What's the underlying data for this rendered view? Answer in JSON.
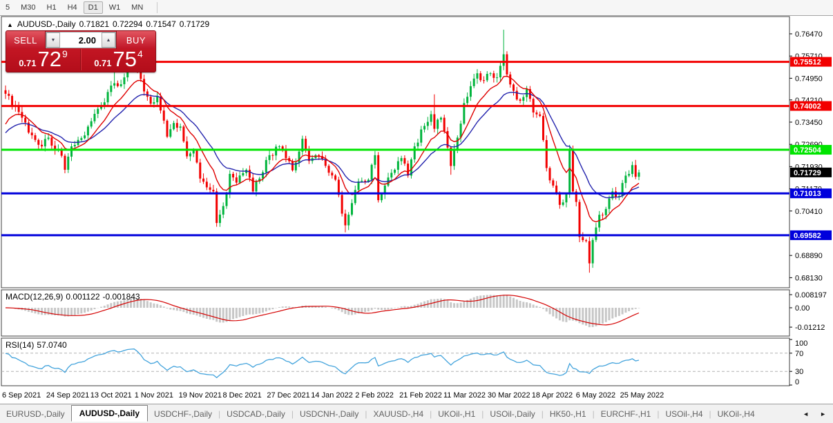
{
  "toolbar": {
    "timeframes": [
      "5",
      "M30",
      "H1",
      "H4",
      "D1",
      "W1",
      "MN"
    ],
    "active": "D1"
  },
  "chart_header": {
    "marker": "▲",
    "title": "AUDUSD-,Daily",
    "open": "0.71821",
    "high": "0.72294",
    "low": "0.71547",
    "close": "0.71729"
  },
  "trade_panel": {
    "sell_label": "SELL",
    "buy_label": "BUY",
    "volume": "2.00",
    "spin_down": "▼",
    "spin_up": "▲",
    "sell_price": {
      "prefix": "0.71",
      "pips": "72",
      "sup": "9"
    },
    "buy_price": {
      "prefix": "0.71",
      "pips": "75",
      "sup": "4"
    }
  },
  "indicators": {
    "macd": {
      "label": "MACD(12,26,9)",
      "value": "0.001122",
      "signal": "-0.001843"
    },
    "rsi": {
      "label": "RSI(14)",
      "value": "57.0740"
    }
  },
  "date_axis": [
    "6 Sep 2021",
    "24 Sep 2021",
    "13 Oct 2021",
    "1 Nov 2021",
    "19 Nov 2021",
    "8 Dec 2021",
    "27 Dec 2021",
    "14 Jan 2022",
    "2 Feb 2022",
    "21 Feb 2022",
    "11 Mar 2022",
    "30 Mar 2022",
    "18 Apr 2022",
    "6 May 2022",
    "25 May 2022"
  ],
  "tabs": {
    "items": [
      "EURUSD-,Daily",
      "AUDUSD-,Daily",
      "USDCHF-,Daily",
      "USDCAD-,Daily",
      "USDCNH-,Daily",
      "XAUUSD-,H4",
      "UKOil-,H1",
      "USOil-,Daily",
      "HK50-,H1",
      "EURCHF-,H1",
      "USOil-,H4",
      "UKOil-,H4"
    ],
    "active_index": 1,
    "scroll_left": "◄",
    "scroll_right": "►"
  },
  "chart_data": {
    "type": "candlestick",
    "symbol": "AUDUSD-",
    "timeframe": "Daily",
    "ohlc_display": {
      "open": 0.71821,
      "high": 0.72294,
      "low": 0.71547,
      "close": 0.71729
    },
    "colors": {
      "bull": "#00b43c",
      "bear": "#f20000",
      "ma_fast": "#df0000",
      "ma_slow": "#2323ad",
      "macd_hist": "#c7c7c7",
      "macd_signal": "#d40000",
      "rsi_line": "#42a3dc"
    },
    "y_axis_ticks": [
      0.7647,
      0.7571,
      0.7495,
      0.7421,
      0.7345,
      0.7269,
      0.7193,
      0.7117,
      0.7041,
      0.6889,
      0.6813
    ],
    "horizontal_lines": [
      {
        "price": 0.75512,
        "color": "#f20000"
      },
      {
        "price": 0.74002,
        "color": "#f20000"
      },
      {
        "price": 0.72504,
        "color": "#00e400"
      },
      {
        "price": 0.71013,
        "color": "#0000dc"
      },
      {
        "price": 0.69582,
        "color": "#0000dc"
      }
    ],
    "price_badges": [
      {
        "label": "0.75512",
        "price": 0.75512,
        "color": "#f20000"
      },
      {
        "label": "0.74002",
        "price": 0.74002,
        "color": "#f20000"
      },
      {
        "label": "0.72504",
        "price": 0.72504,
        "color": "#00e400"
      },
      {
        "label": "0.71729",
        "price": 0.71729,
        "color": "#000000"
      },
      {
        "label": "0.71013",
        "price": 0.71013,
        "color": "#0000dc"
      },
      {
        "label": "0.69582",
        "price": 0.69582,
        "color": "#0000dc"
      }
    ],
    "current_price": 0.71729,
    "candle_count": 193,
    "candle_anchors": [
      [
        0,
        0.7442,
        null,
        null
      ],
      [
        2,
        0.7402,
        null,
        null
      ],
      [
        5,
        0.736,
        null,
        null
      ],
      [
        8,
        0.73,
        null,
        null
      ],
      [
        11,
        0.7262,
        null,
        null
      ],
      [
        13,
        0.7292,
        null,
        null
      ],
      [
        15,
        0.725,
        null,
        null
      ],
      [
        17,
        0.723,
        null,
        null
      ],
      [
        18,
        0.7182,
        null,
        0.717
      ],
      [
        20,
        0.7262,
        null,
        null
      ],
      [
        23,
        0.729,
        null,
        null
      ],
      [
        26,
        0.7348,
        null,
        null
      ],
      [
        29,
        0.74,
        null,
        null
      ],
      [
        31,
        0.7448,
        null,
        null
      ],
      [
        33,
        0.7478,
        0.7552,
        null
      ],
      [
        34,
        0.7468,
        null,
        null
      ],
      [
        36,
        0.7498,
        null,
        null
      ],
      [
        38,
        0.753,
        null,
        null
      ],
      [
        40,
        0.7518,
        null,
        null
      ],
      [
        42,
        0.745,
        null,
        null
      ],
      [
        44,
        0.7408,
        null,
        null
      ],
      [
        46,
        0.7432,
        null,
        null
      ],
      [
        48,
        0.735,
        null,
        null
      ],
      [
        49,
        0.7295,
        null,
        null
      ],
      [
        51,
        0.7342,
        null,
        null
      ],
      [
        53,
        0.733,
        null,
        null
      ],
      [
        55,
        0.7228,
        null,
        null
      ],
      [
        57,
        0.7248,
        null,
        null
      ],
      [
        59,
        0.7152,
        null,
        null
      ],
      [
        61,
        0.7122,
        null,
        null
      ],
      [
        63,
        0.7108,
        null,
        null
      ],
      [
        64,
        0.7,
        null,
        0.6993
      ],
      [
        66,
        0.7058,
        null,
        null
      ],
      [
        68,
        0.7168,
        null,
        null
      ],
      [
        70,
        0.7138,
        null,
        null
      ],
      [
        73,
        0.7182,
        null,
        null
      ],
      [
        75,
        0.7108,
        null,
        null
      ],
      [
        77,
        0.7152,
        null,
        null
      ],
      [
        80,
        0.7232,
        null,
        null
      ],
      [
        83,
        0.7262,
        null,
        null
      ],
      [
        85,
        0.7222,
        null,
        null
      ],
      [
        87,
        0.718,
        null,
        null
      ],
      [
        90,
        0.7288,
        null,
        null
      ],
      [
        92,
        0.7212,
        null,
        null
      ],
      [
        94,
        0.7232,
        null,
        null
      ],
      [
        96,
        0.7218,
        null,
        null
      ],
      [
        98,
        0.7172,
        null,
        null
      ],
      [
        100,
        0.7148,
        null,
        null
      ],
      [
        102,
        0.7032,
        null,
        null
      ],
      [
        103,
        0.6992,
        null,
        0.6968
      ],
      [
        105,
        0.7068,
        null,
        null
      ],
      [
        107,
        0.7142,
        null,
        null
      ],
      [
        110,
        0.7148,
        null,
        null
      ],
      [
        112,
        0.7232,
        null,
        null
      ],
      [
        113,
        0.7078,
        null,
        null
      ],
      [
        115,
        0.7128,
        null,
        null
      ],
      [
        118,
        0.7182,
        null,
        null
      ],
      [
        120,
        0.7222,
        null,
        null
      ],
      [
        122,
        0.7162,
        null,
        null
      ],
      [
        124,
        0.7262,
        null,
        null
      ],
      [
        127,
        0.7332,
        null,
        null
      ],
      [
        129,
        0.7372,
        null,
        null
      ],
      [
        130,
        0.7322,
        0.744,
        null
      ],
      [
        132,
        0.736,
        null,
        null
      ],
      [
        134,
        0.7258,
        null,
        null
      ],
      [
        135,
        0.7195,
        null,
        0.7165
      ],
      [
        137,
        0.7292,
        null,
        null
      ],
      [
        139,
        0.741,
        null,
        null
      ],
      [
        141,
        0.7468,
        null,
        null
      ],
      [
        143,
        0.7512,
        null,
        null
      ],
      [
        145,
        0.7488,
        null,
        null
      ],
      [
        147,
        0.7512,
        null,
        null
      ],
      [
        149,
        0.7498,
        null,
        null
      ],
      [
        151,
        0.7577,
        0.7661,
        null
      ],
      [
        152,
        0.7508,
        null,
        null
      ],
      [
        154,
        0.7452,
        null,
        null
      ],
      [
        156,
        0.7418,
        null,
        null
      ],
      [
        158,
        0.7458,
        null,
        null
      ],
      [
        160,
        0.7378,
        null,
        null
      ],
      [
        162,
        0.7366,
        null,
        null
      ],
      [
        164,
        0.7188,
        null,
        null
      ],
      [
        166,
        0.7128,
        null,
        null
      ],
      [
        168,
        0.7062,
        null,
        null
      ],
      [
        170,
        0.7098,
        null,
        null
      ],
      [
        171,
        0.7252,
        0.7265,
        null
      ],
      [
        172,
        0.7108,
        null,
        null
      ],
      [
        173,
        0.7072,
        null,
        null
      ],
      [
        174,
        0.6952,
        null,
        null
      ],
      [
        176,
        0.6938,
        null,
        null
      ],
      [
        177,
        0.6862,
        null,
        0.683
      ],
      [
        178,
        0.6942,
        null,
        null
      ],
      [
        180,
        0.7028,
        null,
        null
      ],
      [
        182,
        0.7048,
        null,
        null
      ],
      [
        184,
        0.7108,
        null,
        null
      ],
      [
        186,
        0.7092,
        null,
        null
      ],
      [
        188,
        0.7162,
        null,
        null
      ],
      [
        190,
        0.7198,
        null,
        null
      ],
      [
        191,
        0.7158,
        null,
        null
      ],
      [
        192,
        0.71729,
        null,
        null
      ]
    ],
    "moving_averages": [
      {
        "name": "fast",
        "period": 10,
        "seed": 0.7315
      },
      {
        "name": "slow",
        "period": 21,
        "seed": 0.7295
      }
    ],
    "macd": {
      "params": [
        12,
        26,
        9
      ],
      "current_value": 0.001122,
      "current_signal": -0.001843,
      "axis_labels": [
        0.008197,
        0.0,
        -0.01212
      ]
    },
    "rsi": {
      "period": 14,
      "current_value": 57.074,
      "axis_labels": [
        100,
        70,
        30,
        0
      ],
      "levels": [
        70,
        30
      ]
    }
  }
}
